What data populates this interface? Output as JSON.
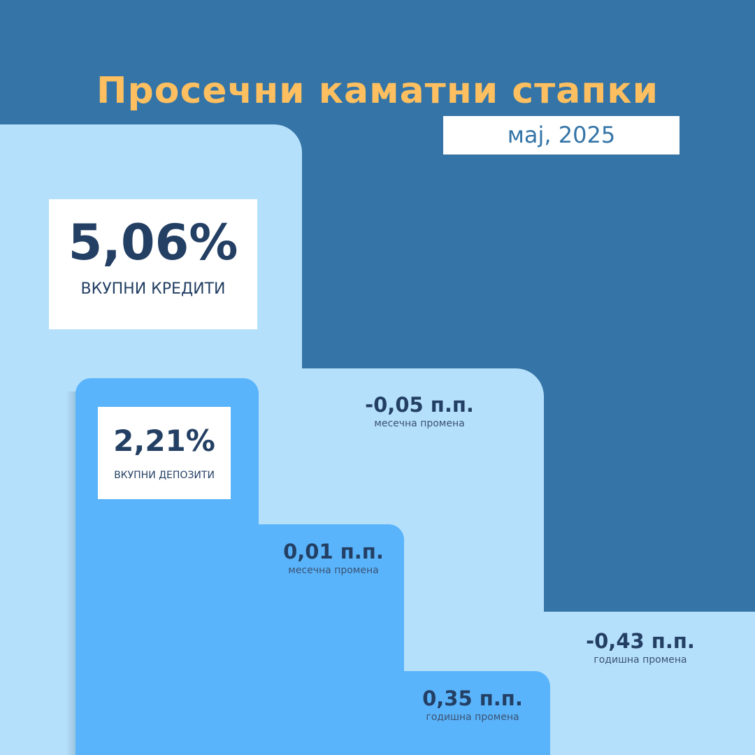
{
  "title": "Просечни каматни стапки",
  "period": "мај, 2025",
  "colors": {
    "background": "#3474a7",
    "loans_step": "#b5e0fb",
    "deposits_step": "#5ab4fb",
    "title": "#fdbf5f",
    "text": "#233f63"
  },
  "loans": {
    "rate": "5,06%",
    "label": "ВКУПНИ КРЕДИТИ",
    "monthly": {
      "value": "-0,05 п.п.",
      "label": "месечна промена"
    },
    "yearly": {
      "value": "-0,43 п.п.",
      "label": "годишна промена"
    }
  },
  "deposits": {
    "rate": "2,21%",
    "label": "ВКУПНИ ДЕПОЗИТИ",
    "monthly": {
      "value": "0,01 п.п.",
      "label": "месечна промена"
    },
    "yearly": {
      "value": "0,35 п.п.",
      "label": "годишна промена"
    }
  }
}
